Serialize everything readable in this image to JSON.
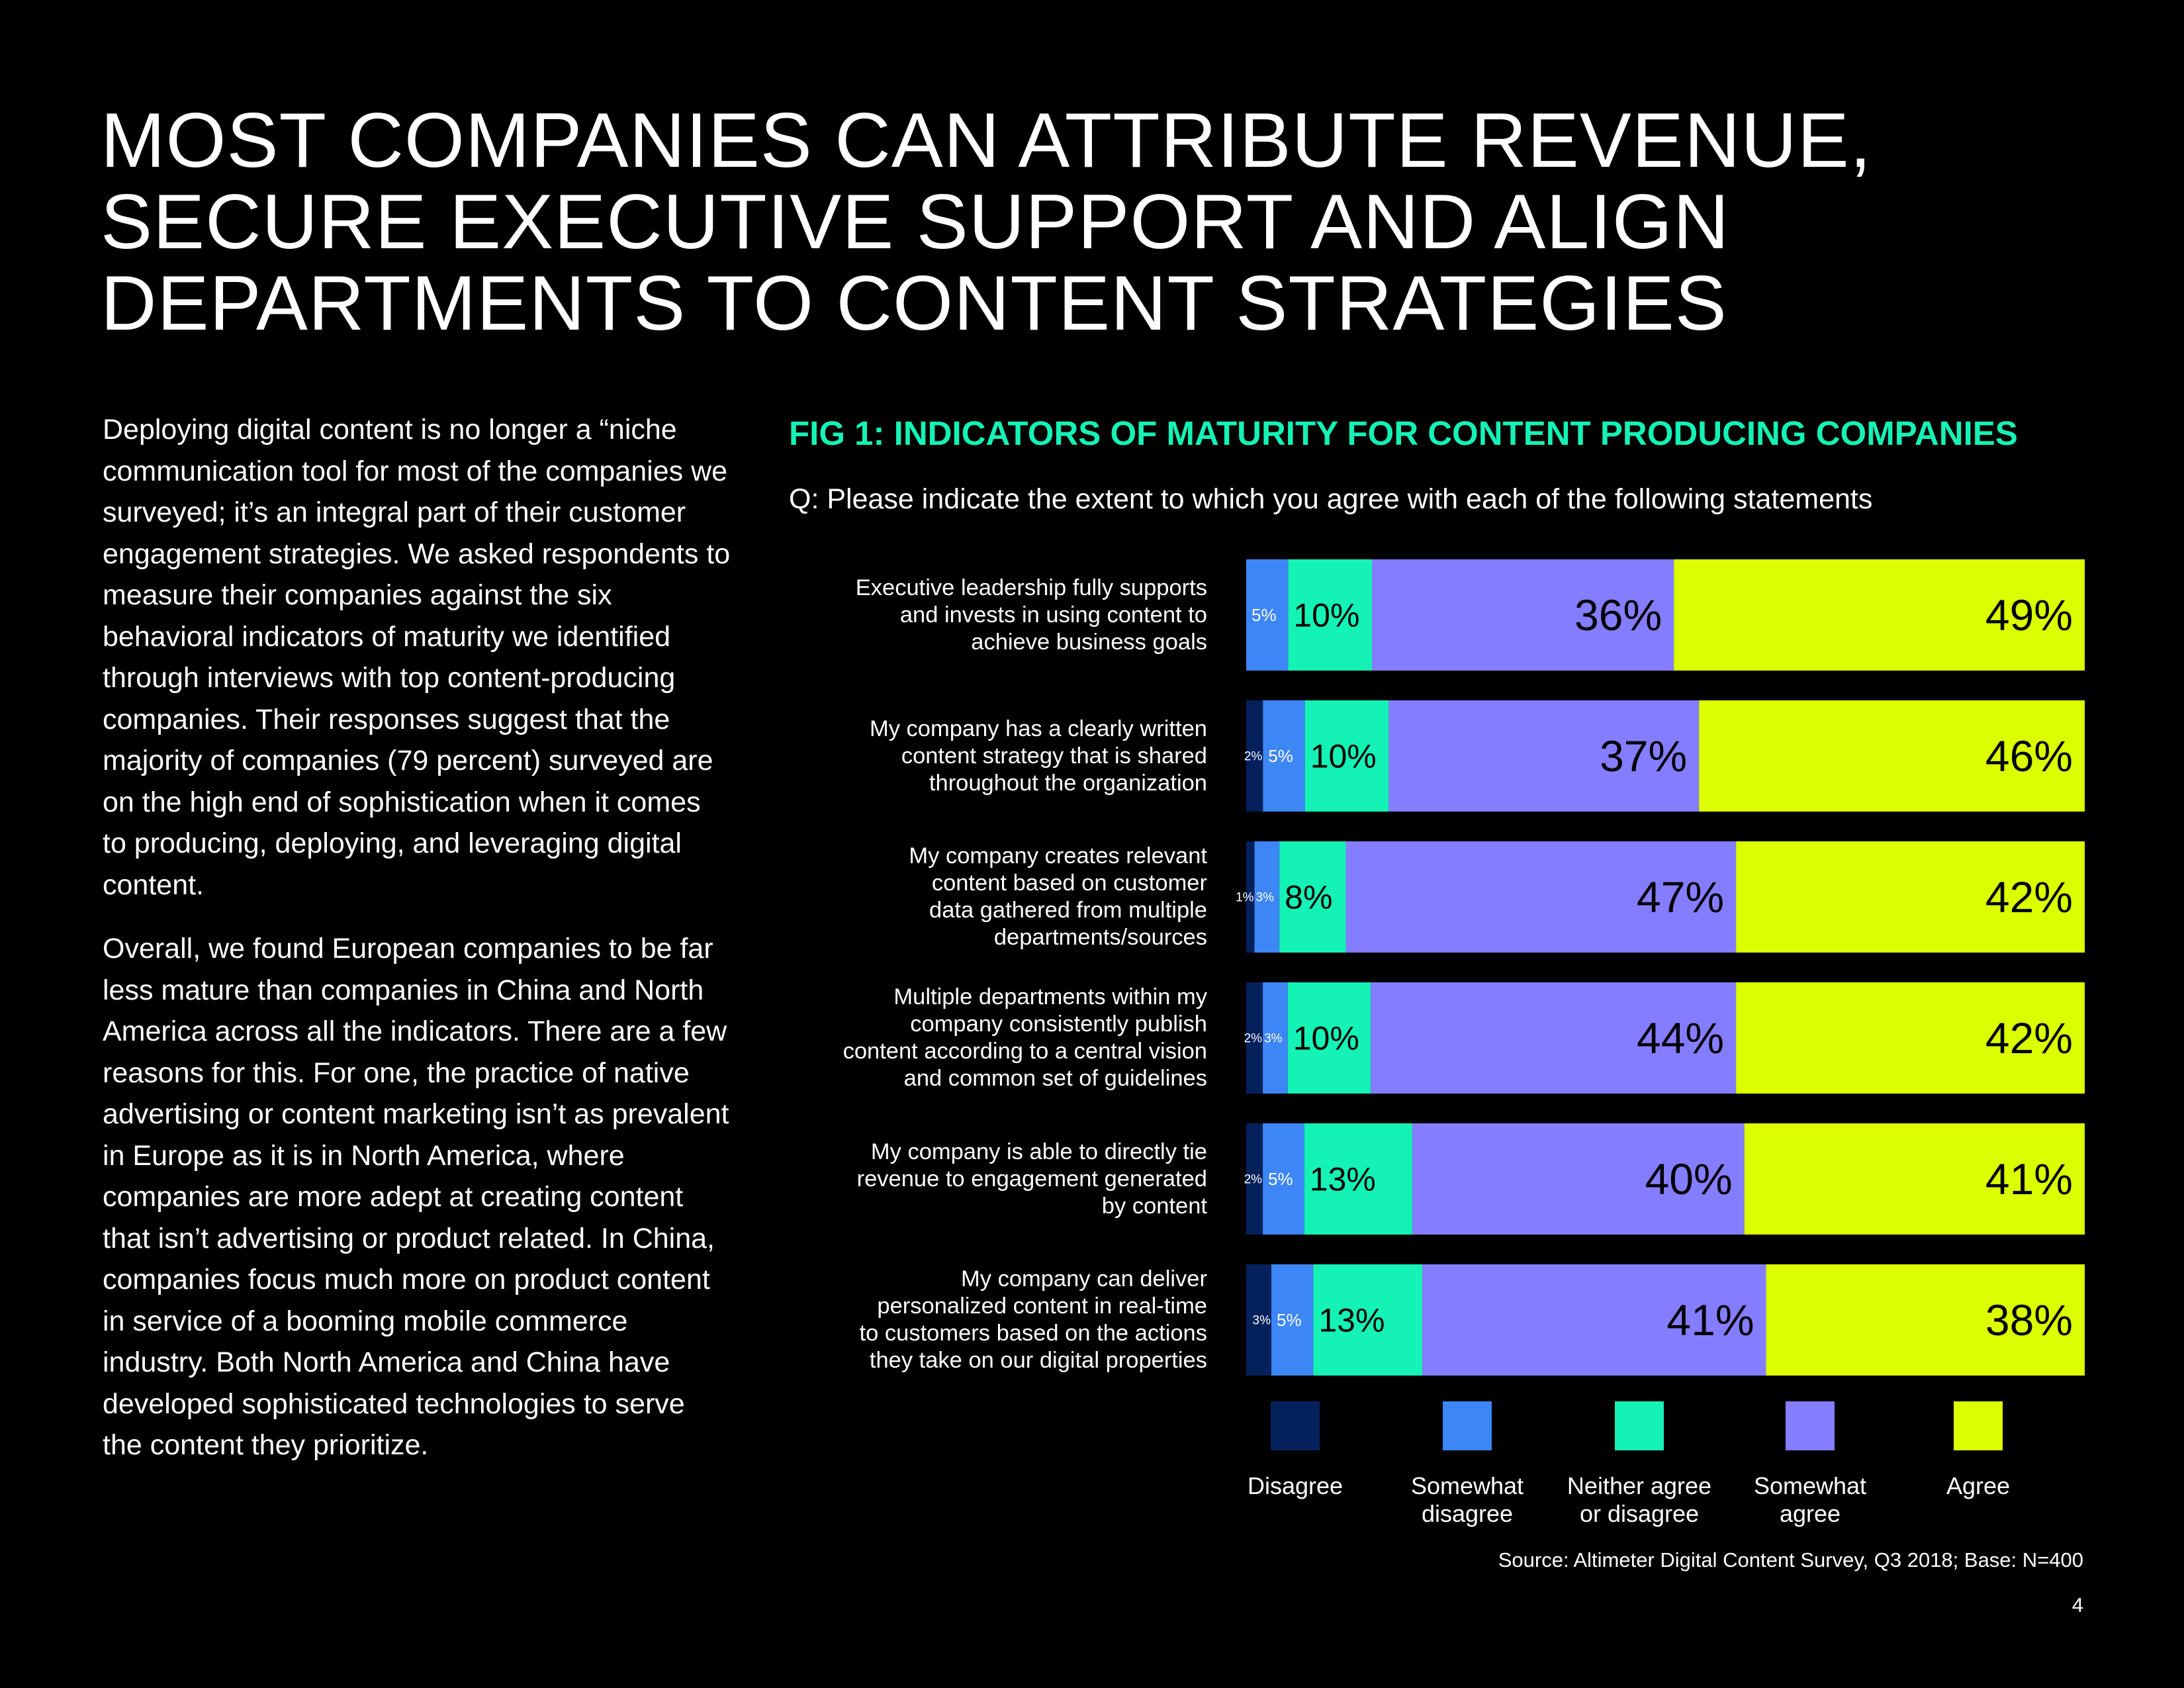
{
  "headline": [
    "MOST COMPANIES CAN ATTRIBUTE REVENUE,",
    "SECURE EXECUTIVE SUPPORT AND ALIGN",
    "DEPARTMENTS TO CONTENT STRATEGIES"
  ],
  "body": [
    "Deploying digital content is no longer a “niche communication tool for most of the companies we surveyed; it’s an integral part of their customer engagement strategies. We asked respondents to measure their companies against the six behavioral indicators of maturity we identified through interviews with top content-producing companies. Their responses suggest that the majority of companies (79 percent) surveyed are on the high end of sophistication when it comes to producing, deploying, and leveraging digital content.",
    "Overall, we found European companies to be far less mature than companies in China and North America across all the indicators. There are a few reasons for this. For one, the practice of native advertising or content marketing isn’t as prevalent in Europe as it is in North America, where companies are more adept at creating content that isn’t advertising or product related. In China, companies focus much more on product content in service of a booming mobile commerce industry. Both North America and China have developed sophisticated technologies to serve the content they prioritize."
  ],
  "source": "Source: Altimeter Digital Content Survey, Q3 2018; Base: N=400",
  "page_number": "4",
  "colors": {
    "disagree": "#04215c",
    "somewhat_disagree": "#3d86f5",
    "neither": "#15f2b5",
    "somewhat_agree": "#857dff",
    "agree": "#dcff00",
    "accent": "#15f2b5"
  },
  "chart_data": {
    "type": "bar",
    "orientation": "horizontal",
    "stacked": true,
    "title": "FIG 1: INDICATORS OF MATURITY FOR CONTENT PRODUCING COMPANIES",
    "subtitle": "Q: Please indicate the extent to which you agree with each of the following statements",
    "categories": [
      [
        "Executive leadership fully supports",
        "and invests in using content to",
        "achieve business goals"
      ],
      [
        "My company has a clearly written",
        "content strategy that is shared",
        "throughout the organization"
      ],
      [
        "My company creates relevant",
        "content based on customer",
        "data gathered from multiple",
        "departments/sources"
      ],
      [
        "Multiple departments within my",
        "company consistently publish",
        "content according to a central vision",
        "and common set of guidelines"
      ],
      [
        "My company is able to directly tie",
        "revenue to engagement generated",
        "by content"
      ],
      [
        "My company can deliver",
        "personalized content in real-time",
        "to customers based on the actions",
        "they take on our digital properties"
      ]
    ],
    "series": [
      {
        "name": "Disagree",
        "legend": [
          "Disagree"
        ],
        "values": [
          0,
          2,
          1,
          2,
          2,
          3
        ]
      },
      {
        "name": "Somewhat disagree",
        "legend": [
          "Somewhat",
          "disagree"
        ],
        "values": [
          5,
          5,
          3,
          3,
          5,
          5
        ]
      },
      {
        "name": "Neither agree or disagree",
        "legend": [
          "Neither agree",
          "or disagree"
        ],
        "values": [
          10,
          10,
          8,
          10,
          13,
          13
        ]
      },
      {
        "name": "Somewhat agree",
        "legend": [
          "Somewhat",
          "agree"
        ],
        "values": [
          36,
          37,
          47,
          44,
          40,
          41
        ]
      },
      {
        "name": "Agree",
        "legend": [
          "Agree"
        ],
        "values": [
          49,
          46,
          42,
          42,
          41,
          38
        ]
      }
    ],
    "value_suffix": "%",
    "legend_position": "bottom"
  }
}
